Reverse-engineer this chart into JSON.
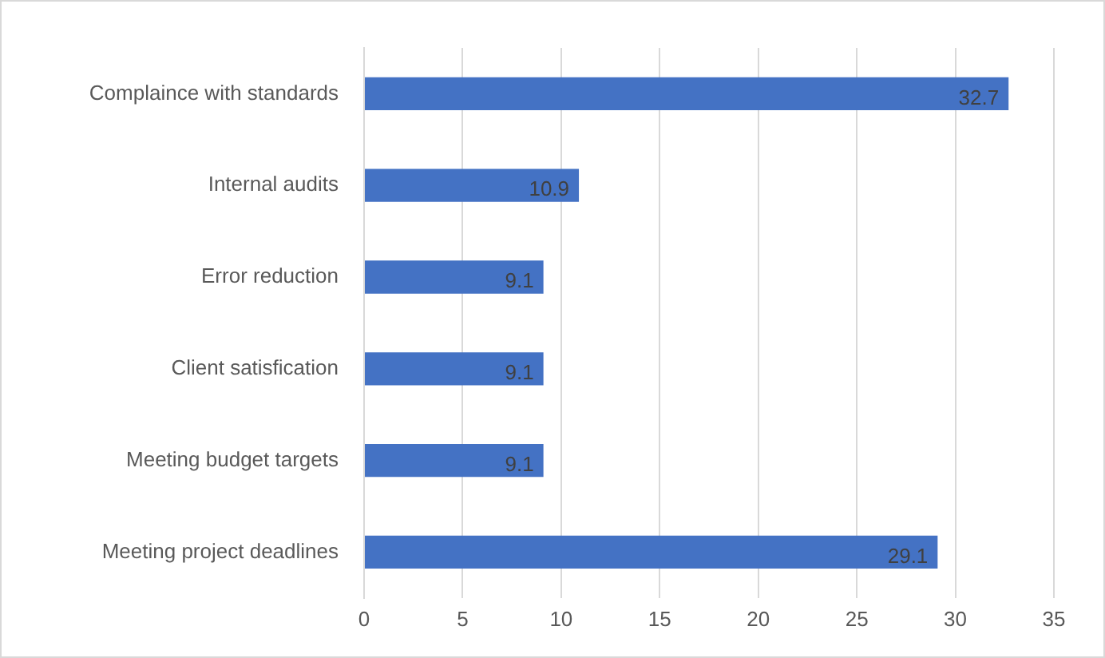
{
  "chart_data": {
    "type": "bar",
    "orientation": "horizontal",
    "categories": [
      "Complaince with standards",
      "Internal audits",
      "Error reduction",
      "Client satisfication",
      "Meeting budget targets",
      "Meeting project deadlines"
    ],
    "values": [
      32.7,
      10.9,
      9.1,
      9.1,
      9.1,
      29.1
    ],
    "color": "#4472c4",
    "xlim": [
      0,
      35
    ],
    "xticks": [
      0,
      5,
      10,
      15,
      20,
      25,
      30,
      35
    ],
    "grid": "x",
    "legend": false,
    "data_labels": true
  }
}
